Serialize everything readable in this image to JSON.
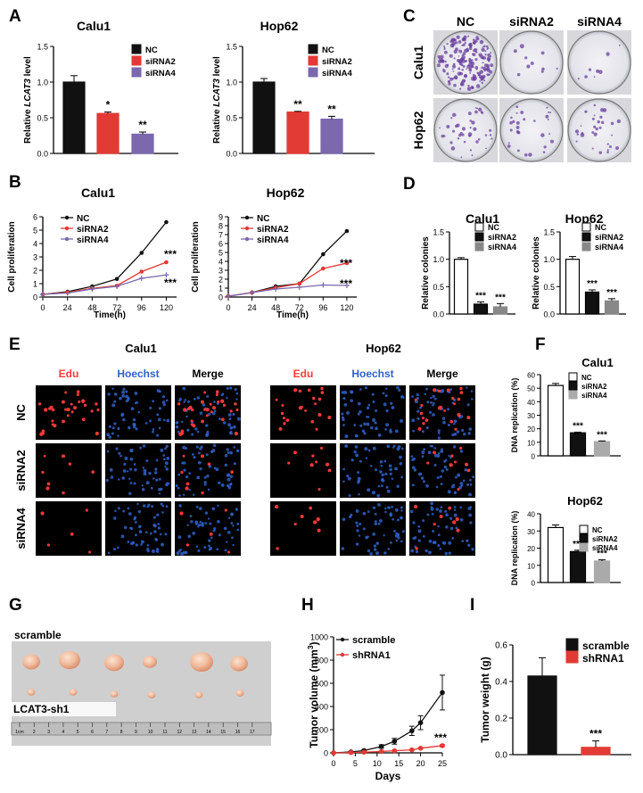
{
  "panel_letters": [
    "A",
    "B",
    "C",
    "D",
    "E",
    "F",
    "G",
    "H",
    "I"
  ],
  "colors": {
    "nc": "#111111",
    "si2": "#e23a34",
    "si4": "#7b68ad",
    "red": "#ff3b3b",
    "blue": "#2f62c9",
    "plate_purple": "#6a3f9e"
  },
  "panel_c": {
    "cols": [
      "NC",
      "siRNA2",
      "siRNA4"
    ],
    "rows": [
      "Calu1",
      "Hop62"
    ]
  },
  "panel_e": {
    "groups": [
      "Calu1",
      "Hop62"
    ],
    "cols": [
      "Edu",
      "Hoechst",
      "Merge"
    ],
    "rows": [
      "NC",
      "siRNA2",
      "siRNA4"
    ]
  },
  "panel_g": {
    "top_label": "scramble",
    "bottom_label": "LCAT3-sh1",
    "ruler_numbers": [
      "1cm",
      "2",
      "3",
      "4",
      "5",
      "6",
      "7",
      "8",
      "9",
      "10",
      "11",
      "12",
      "13",
      "14",
      "15",
      "16",
      "17"
    ]
  },
  "chart_data": [
    {
      "id": "A1",
      "type": "bar",
      "title": "Calu1",
      "ylabel": "Relative LCAT3 level",
      "ylabel_pre": "Relative ",
      "ylabel_em": "LCAT3",
      "ylabel_post": " level",
      "ylim": [
        0,
        1.5
      ],
      "yticks": [
        "0.0",
        "0.5",
        "1.0",
        "1.5"
      ],
      "categories": [
        "NC",
        "siRNA2",
        "siRNA4"
      ],
      "values": [
        1.0,
        0.56,
        0.27
      ],
      "errors": [
        0.09,
        0.02,
        0.03
      ],
      "sig": [
        "",
        "*",
        "**"
      ],
      "legend": [
        "NC",
        "siRNA2",
        "siRNA4"
      ]
    },
    {
      "id": "A2",
      "type": "bar",
      "title": "Hop62",
      "ylabel": "Relative LCAT3 level",
      "ylabel_pre": "Relative ",
      "ylabel_em": "LCAT3",
      "ylabel_post": " level",
      "ylim": [
        0,
        1.5
      ],
      "yticks": [
        "0.0",
        "0.5",
        "1.0",
        "1.5"
      ],
      "categories": [
        "NC",
        "siRNA2",
        "siRNA4"
      ],
      "values": [
        1.0,
        0.58,
        0.48
      ],
      "errors": [
        0.05,
        0.01,
        0.04
      ],
      "sig": [
        "",
        "**",
        "**"
      ],
      "legend": [
        "NC",
        "siRNA2",
        "siRNA4"
      ]
    },
    {
      "id": "B1",
      "type": "line",
      "title": "Calu1",
      "xlabel": "Time(h)",
      "ylabel": "Cell proliferation",
      "ylim": [
        0,
        6
      ],
      "yticks": [
        "0",
        "1",
        "2",
        "3",
        "4",
        "5",
        "6"
      ],
      "x": [
        0,
        24,
        48,
        72,
        96,
        120
      ],
      "xticks": [
        "0",
        "24",
        "48",
        "72",
        "96",
        "120"
      ],
      "series": [
        {
          "name": "NC",
          "values": [
            0.2,
            0.4,
            0.8,
            1.35,
            3.3,
            5.6
          ]
        },
        {
          "name": "siRNA2",
          "values": [
            0.2,
            0.35,
            0.65,
            0.85,
            1.9,
            2.6
          ]
        },
        {
          "name": "siRNA4",
          "values": [
            0.2,
            0.3,
            0.6,
            0.8,
            1.4,
            1.65
          ]
        }
      ],
      "sig": [
        "***",
        "***"
      ]
    },
    {
      "id": "B2",
      "type": "line",
      "title": "Hop62",
      "xlabel": "Time(h)",
      "ylabel": "Cell proliferation",
      "ylim": [
        0,
        9
      ],
      "yticks": [
        "0",
        "1",
        "2",
        "3",
        "4",
        "5",
        "6",
        "7",
        "8",
        "9"
      ],
      "x": [
        0,
        24,
        48,
        72,
        96,
        120
      ],
      "xticks": [
        "0",
        "24",
        "48",
        "72",
        "96",
        "120"
      ],
      "series": [
        {
          "name": "NC",
          "values": [
            0.1,
            0.5,
            1.2,
            1.5,
            4.8,
            7.4
          ]
        },
        {
          "name": "siRNA2",
          "values": [
            0.1,
            0.5,
            1.05,
            1.5,
            3.2,
            3.8
          ]
        },
        {
          "name": "siRNA4",
          "values": [
            0.1,
            0.5,
            0.9,
            1.1,
            1.35,
            1.3
          ]
        }
      ],
      "sig": [
        "***",
        "***"
      ]
    },
    {
      "id": "D1",
      "type": "bar",
      "title": "Calu1",
      "ylabel": "Relative colonies",
      "ylim": [
        0,
        1.5
      ],
      "yticks": [
        "0.0",
        "0.5",
        "1.0",
        "1.5"
      ],
      "categories": [
        "NC",
        "siRNA2",
        "siRNA4"
      ],
      "values": [
        1.0,
        0.18,
        0.13
      ],
      "errors": [
        0.03,
        0.04,
        0.06
      ],
      "sig": [
        "",
        "***",
        "***"
      ],
      "legend": [
        "NC",
        "siRNA2",
        "siRNA4"
      ]
    },
    {
      "id": "D2",
      "type": "bar",
      "title": "Hop62",
      "ylabel": "Relative colonies",
      "ylim": [
        0,
        1.5
      ],
      "yticks": [
        "0.0",
        "0.5",
        "1.0",
        "1.5"
      ],
      "categories": [
        "NC",
        "siRNA2",
        "siRNA4"
      ],
      "values": [
        1.0,
        0.4,
        0.24
      ],
      "errors": [
        0.05,
        0.04,
        0.04
      ],
      "sig": [
        "",
        "***",
        "***"
      ],
      "legend": [
        "NC",
        "siRNA2",
        "siRNA4"
      ]
    },
    {
      "id": "F1",
      "type": "bar",
      "title": "Calu1",
      "ylabel": "DNA replication (%)",
      "ylim": [
        0,
        60
      ],
      "yticks": [
        "0",
        "10",
        "20",
        "30",
        "40",
        "50",
        "60"
      ],
      "categories": [
        "NC",
        "siRNA2",
        "siRNA4"
      ],
      "values": [
        52,
        17,
        10.5
      ],
      "errors": [
        1.5,
        0.5,
        0.5
      ],
      "sig": [
        "",
        "***",
        "***"
      ],
      "legend": [
        "NC",
        "siRNA2",
        "siRNA4"
      ]
    },
    {
      "id": "F2",
      "type": "bar",
      "title": "Hop62",
      "ylabel": "DNA replication (%)",
      "ylim": [
        0,
        40
      ],
      "yticks": [
        "0",
        "10",
        "20",
        "30",
        "40"
      ],
      "categories": [
        "NC",
        "siRNA2",
        "siRNA4"
      ],
      "values": [
        32,
        18,
        12.5
      ],
      "errors": [
        1.5,
        0.8,
        0.7
      ],
      "sig": [
        "",
        "***",
        "***"
      ],
      "legend": [
        "NC",
        "siRNA2",
        "siRNA4"
      ]
    },
    {
      "id": "H",
      "type": "line",
      "title": "",
      "xlabel": "Days",
      "ylabel": "Tumor volume (mm3)",
      "ylabel_pre": "Tumor volume (mm",
      "ylabel_sup": "3",
      "ylabel_post": ")",
      "ylim": [
        0,
        1000
      ],
      "yticks": [
        "0",
        "200",
        "400",
        "600",
        "800",
        "1000"
      ],
      "x": [
        0,
        4,
        7,
        11,
        14,
        18,
        20,
        25
      ],
      "xticks": [
        "0",
        "5",
        "10",
        "15",
        "20",
        "25"
      ],
      "xlim": [
        0,
        25
      ],
      "series": [
        {
          "name": "scramble",
          "values": [
            0,
            8,
            20,
            55,
            100,
            190,
            260,
            520
          ],
          "errors": [
            0,
            4,
            8,
            15,
            25,
            40,
            60,
            150
          ]
        },
        {
          "name": "shRNA1",
          "values": [
            0,
            3,
            6,
            12,
            18,
            26,
            40,
            62
          ],
          "errors": [
            0,
            1,
            2,
            3,
            4,
            5,
            6,
            10
          ]
        }
      ],
      "sig": [
        "***"
      ],
      "legend": [
        "scramble",
        "shRNA1"
      ]
    },
    {
      "id": "I",
      "type": "bar",
      "title": "",
      "ylabel": "Tumor weight (g)",
      "ylim": [
        0,
        0.6
      ],
      "yticks": [
        "0.0",
        "0.2",
        "0.4",
        "0.6"
      ],
      "categories": [
        "scramble",
        "shRNA1"
      ],
      "values": [
        0.43,
        0.04
      ],
      "errors": [
        0.1,
        0.035
      ],
      "sig": [
        "",
        "***"
      ],
      "legend": [
        "scramble",
        "shRNA1"
      ]
    }
  ]
}
